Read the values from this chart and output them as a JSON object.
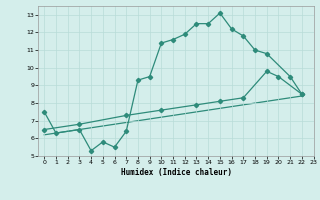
{
  "line1_x": [
    0,
    1,
    3,
    4,
    5,
    6,
    7,
    8,
    9,
    10,
    11,
    12,
    13,
    14,
    15,
    16,
    17,
    18,
    19,
    21,
    22
  ],
  "line1_y": [
    7.5,
    6.3,
    6.5,
    5.3,
    5.8,
    5.5,
    6.4,
    9.3,
    9.5,
    11.4,
    11.6,
    11.9,
    12.5,
    12.5,
    13.1,
    12.2,
    11.8,
    11.0,
    10.8,
    9.5,
    8.5
  ],
  "line2_x": [
    0,
    3,
    7,
    10,
    13,
    15,
    17,
    19,
    20,
    22
  ],
  "line2_y": [
    6.5,
    6.8,
    7.3,
    7.6,
    7.9,
    8.1,
    8.3,
    9.8,
    9.5,
    8.5
  ],
  "line3_x": [
    0,
    22
  ],
  "line3_y": [
    6.2,
    8.4
  ],
  "line_color": "#2e8b7a",
  "bg_color": "#d4eeeb",
  "grid_color": "#b8dcd8",
  "xlabel": "Humidex (Indice chaleur)",
  "xlim": [
    -0.5,
    23
  ],
  "ylim": [
    5,
    13.5
  ],
  "yticks": [
    5,
    6,
    7,
    8,
    9,
    10,
    11,
    12,
    13
  ],
  "xticks": [
    0,
    1,
    2,
    3,
    4,
    5,
    6,
    7,
    8,
    9,
    10,
    11,
    12,
    13,
    14,
    15,
    16,
    17,
    18,
    19,
    20,
    21,
    22,
    23
  ]
}
